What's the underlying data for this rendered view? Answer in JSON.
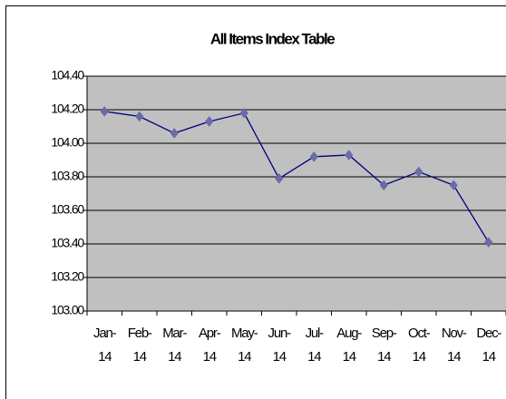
{
  "chart_data": {
    "type": "line",
    "title": "All Items Index Table",
    "categories": [
      "Jan-14",
      "Feb-14",
      "Mar-14",
      "Apr-14",
      "May-14",
      "Jun-14",
      "Jul-14",
      "Aug-14",
      "Sep-14",
      "Oct-14",
      "Nov-14",
      "Dec-14"
    ],
    "series": [
      {
        "name": "All Items Index",
        "color": "#000080",
        "marker_color": "#6b6ba8",
        "values": [
          104.19,
          104.16,
          104.06,
          104.13,
          104.18,
          103.79,
          103.92,
          103.93,
          103.75,
          103.83,
          103.75,
          103.41
        ]
      }
    ],
    "ylim": [
      103.0,
      104.4
    ],
    "yticks": [
      {
        "value": 103.0,
        "label": "103.00"
      },
      {
        "value": 103.2,
        "label": "103.20"
      },
      {
        "value": 103.4,
        "label": "103.40"
      },
      {
        "value": 103.6,
        "label": "103.60"
      },
      {
        "value": 103.8,
        "label": "103.80"
      },
      {
        "value": 104.0,
        "label": "104.00"
      },
      {
        "value": 104.2,
        "label": "104.20"
      },
      {
        "value": 104.4,
        "label": "104.40"
      }
    ],
    "grid": true,
    "plot_background": "#c0c0c0"
  }
}
